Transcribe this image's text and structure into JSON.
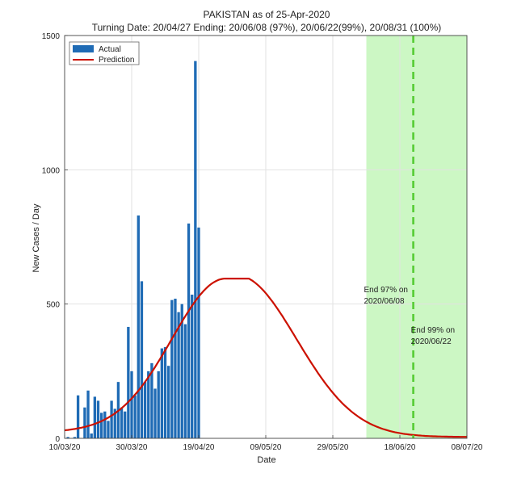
{
  "chart_data": {
    "type": "bar",
    "title": "PAKISTAN as of 25-Apr-2020",
    "subtitle": "Turning Date: 20/04/27  Ending: 20/06/08 (97%), 20/06/22(99%), 20/08/31 (100%)",
    "xlabel": "Date",
    "ylabel": "New Cases / Day",
    "xlim_days": [
      0,
      120
    ],
    "ylim": [
      0,
      1500
    ],
    "yticks": [
      0,
      500,
      1000,
      1500
    ],
    "xticks": [
      {
        "day": 0,
        "label": "10/03/20"
      },
      {
        "day": 20,
        "label": "30/03/20"
      },
      {
        "day": 40,
        "label": "19/04/20"
      },
      {
        "day": 60,
        "label": "09/05/20"
      },
      {
        "day": 80,
        "label": "29/05/20"
      },
      {
        "day": 100,
        "label": "18/06/20"
      },
      {
        "day": 120,
        "label": "08/07/20"
      }
    ],
    "legend": {
      "position": "top-left",
      "entries": [
        "Actual",
        "Prediction"
      ]
    },
    "series": [
      {
        "name": "Actual",
        "type": "bar",
        "color": "#1f6bb5",
        "days": [
          1,
          3,
          4,
          6,
          7,
          8,
          9,
          10,
          11,
          12,
          13,
          14,
          15,
          16,
          17,
          18,
          19,
          20,
          21,
          22,
          23,
          24,
          25,
          26,
          27,
          28,
          29,
          30,
          31,
          32,
          33,
          34,
          35,
          36,
          37,
          38,
          39,
          40,
          41,
          42
        ],
        "values": [
          5,
          5,
          160,
          115,
          178,
          18,
          155,
          140,
          95,
          100,
          65,
          140,
          110,
          210,
          115,
          100,
          415,
          250,
          160,
          830,
          585,
          210,
          250,
          280,
          185,
          250,
          335,
          340,
          270,
          515,
          520,
          470,
          500,
          425,
          800,
          535,
          1405,
          785,
          0,
          0
        ]
      },
      {
        "name": "Prediction",
        "type": "line",
        "color": "#cc1100",
        "peak_day": 48,
        "peak_value": 595,
        "base_value": 30,
        "end_value": 5
      }
    ],
    "annotations": [
      {
        "text_line1": "End 97% on",
        "text_line2": "2020/06/08",
        "day": 90
      },
      {
        "text_line1": "End 99% on",
        "text_line2": "2020/06/22",
        "day": 104
      }
    ],
    "shaded_region": {
      "start_day": 90,
      "end_day": 120,
      "color": "#ccf7c4"
    },
    "vline": {
      "day": 104,
      "color": "#55cc33"
    },
    "bg_color": "#ffffff"
  }
}
